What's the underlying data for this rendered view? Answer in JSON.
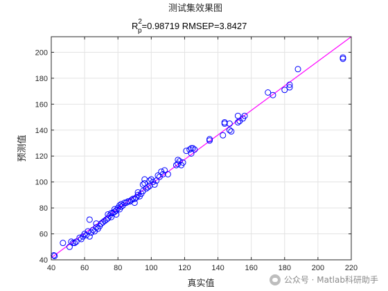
{
  "chart_data": {
    "type": "scatter",
    "title": "测试集效果图",
    "subtitle": {
      "prefix": "R",
      "sup": "2",
      "sub": "p",
      "rest": "=0.98719  RMSEP=3.8427"
    },
    "xlabel": "真实值",
    "ylabel": "预测值",
    "xlim": [
      40,
      220
    ],
    "ylim": [
      40,
      212
    ],
    "xticks": [
      40,
      60,
      80,
      100,
      120,
      140,
      160,
      180,
      200,
      220
    ],
    "yticks": [
      40,
      60,
      80,
      100,
      120,
      140,
      160,
      180,
      200
    ],
    "grid": true,
    "marker": "circle-open",
    "marker_color": "#0000ff",
    "line_color": "#ff00ff",
    "fit_line": {
      "x": [
        40,
        220
      ],
      "y": [
        41.6,
        212
      ]
    },
    "points": [
      [
        41.5,
        43.5
      ],
      [
        42,
        43
      ],
      [
        47,
        53
      ],
      [
        51,
        50
      ],
      [
        52,
        54
      ],
      [
        53,
        53
      ],
      [
        54,
        53
      ],
      [
        55,
        54
      ],
      [
        57,
        57
      ],
      [
        58,
        56
      ],
      [
        59,
        58
      ],
      [
        60,
        60
      ],
      [
        61,
        59
      ],
      [
        62,
        62
      ],
      [
        63,
        71
      ],
      [
        63,
        58
      ],
      [
        64,
        61
      ],
      [
        65,
        63
      ],
      [
        66,
        62
      ],
      [
        67,
        65
      ],
      [
        67,
        68
      ],
      [
        68,
        64
      ],
      [
        69,
        66
      ],
      [
        70,
        68
      ],
      [
        71,
        69
      ],
      [
        72,
        70
      ],
      [
        73,
        71
      ],
      [
        74,
        72
      ],
      [
        74,
        75
      ],
      [
        75,
        74
      ],
      [
        76,
        73
      ],
      [
        76,
        76
      ],
      [
        77,
        76
      ],
      [
        78,
        77
      ],
      [
        78,
        79
      ],
      [
        79,
        75
      ],
      [
        79,
        78
      ],
      [
        80,
        80
      ],
      [
        81,
        79
      ],
      [
        81,
        82
      ],
      [
        82,
        81
      ],
      [
        82,
        83
      ],
      [
        83,
        82
      ],
      [
        84,
        84
      ],
      [
        85,
        84
      ],
      [
        86,
        85
      ],
      [
        87,
        85
      ],
      [
        88,
        86
      ],
      [
        89,
        87
      ],
      [
        90,
        87
      ],
      [
        90,
        84
      ],
      [
        91,
        88
      ],
      [
        92,
        90
      ],
      [
        92,
        92
      ],
      [
        93,
        89
      ],
      [
        94,
        91
      ],
      [
        95,
        93
      ],
      [
        95,
        98
      ],
      [
        96,
        99
      ],
      [
        96,
        102
      ],
      [
        97,
        95
      ],
      [
        98,
        96
      ],
      [
        99,
        97
      ],
      [
        99,
        101
      ],
      [
        100,
        102
      ],
      [
        101,
        100
      ],
      [
        102,
        98
      ],
      [
        103,
        101
      ],
      [
        104,
        105
      ],
      [
        105,
        104
      ],
      [
        106,
        108
      ],
      [
        107,
        106
      ],
      [
        108,
        109
      ],
      [
        110,
        106
      ],
      [
        115,
        113
      ],
      [
        116,
        114
      ],
      [
        116,
        117
      ],
      [
        117,
        116
      ],
      [
        118,
        113
      ],
      [
        119,
        115
      ],
      [
        121,
        124
      ],
      [
        123,
        125
      ],
      [
        124,
        122
      ],
      [
        124,
        126
      ],
      [
        125,
        126
      ],
      [
        126,
        125
      ],
      [
        135,
        132
      ],
      [
        135,
        133
      ],
      [
        143,
        136
      ],
      [
        144,
        145
      ],
      [
        144,
        146
      ],
      [
        147,
        140
      ],
      [
        147,
        145
      ],
      [
        148,
        139
      ],
      [
        152,
        146
      ],
      [
        152,
        151
      ],
      [
        153,
        147
      ],
      [
        155,
        149
      ],
      [
        156,
        151
      ],
      [
        170,
        169
      ],
      [
        173,
        167
      ],
      [
        180,
        171
      ],
      [
        183,
        175
      ],
      [
        183,
        173
      ],
      [
        188,
        187
      ],
      [
        215,
        195
      ],
      [
        215,
        196
      ]
    ]
  },
  "watermark": {
    "text": "公众号 · Matlab科研助手"
  }
}
